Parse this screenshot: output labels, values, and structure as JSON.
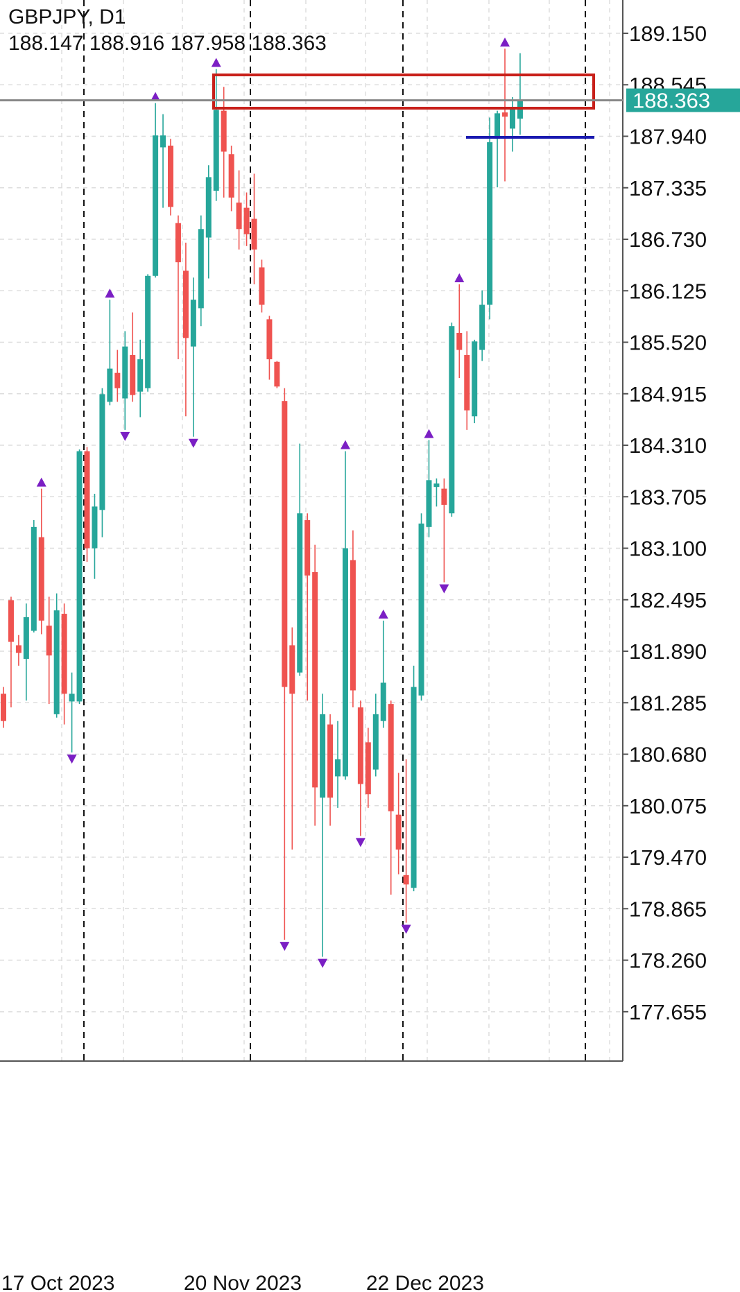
{
  "chart_data": {
    "type": "candlestick",
    "title": "GBPJPY, D1",
    "categories": [
      "17 Oct 2023",
      null,
      null,
      null,
      null,
      null,
      null,
      null,
      null,
      null,
      null,
      null,
      null,
      null,
      null,
      null,
      null,
      null,
      null,
      null,
      null,
      null,
      null,
      null,
      "20 Nov 2023",
      null,
      null,
      null,
      null,
      null,
      null,
      null,
      null,
      null,
      null,
      null,
      null,
      null,
      null,
      null,
      null,
      null,
      null,
      null,
      null,
      null,
      null,
      null,
      "22 Dec 2023",
      null,
      null,
      null,
      null,
      null,
      null,
      null,
      null,
      null,
      null,
      null,
      null,
      null,
      null,
      null,
      null,
      null,
      null,
      null,
      null
    ],
    "open": [
      181.39,
      182.49,
      181.96,
      181.8,
      182.13,
      183.23,
      182.19,
      181.15,
      182.33,
      181.3,
      181.3,
      184.24,
      183.1,
      183.55,
      184.82,
      185.16,
      184.86,
      185.37,
      184.94,
      184.98,
      186.3,
      187.81,
      187.83,
      186.92,
      186.36,
      185.47,
      185.92,
      186.75,
      187.3,
      188.24,
      187.73,
      187.16,
      187.1,
      186.97,
      186.4,
      185.79,
      185.29,
      184.83,
      181.96,
      181.64,
      183.43,
      182.82,
      180.17,
      181.03,
      180.42,
      180.42,
      182.96,
      181.23,
      180.82,
      180.5,
      181.07,
      181.27,
      179.97,
      179.26,
      179.11,
      181.37,
      183.35,
      183.82,
      183.8,
      183.51,
      185.63,
      185.37,
      184.65,
      185.43,
      185.96,
      187.91,
      188.22,
      188.03,
      188.147
    ],
    "high": [
      181.47,
      182.53,
      182.08,
      182.45,
      183.43,
      183.8,
      182.53,
      182.57,
      182.45,
      181.64,
      184.26,
      184.29,
      183.74,
      184.98,
      186.02,
      185.43,
      185.65,
      185.87,
      185.55,
      186.32,
      188.33,
      188.2,
      187.91,
      187.01,
      186.69,
      186.28,
      187.01,
      187.6,
      188.73,
      188.52,
      187.83,
      187.54,
      187.28,
      187.5,
      186.49,
      185.83,
      185.3,
      184.98,
      182.17,
      184.33,
      183.51,
      183.14,
      181.39,
      181.15,
      181.07,
      184.24,
      183.31,
      181.31,
      180.99,
      181.39,
      182.25,
      181.31,
      180.46,
      180.62,
      181.72,
      183.51,
      184.37,
      183.92,
      183.92,
      185.75,
      186.2,
      185.65,
      185.55,
      186.13,
      188.16,
      188.24,
      188.97,
      188.4,
      188.916
    ],
    "low": [
      180.99,
      181.23,
      181.72,
      181.31,
      182.11,
      182.09,
      181.27,
      181.11,
      181.03,
      180.7,
      181.27,
      182.94,
      182.74,
      183.23,
      184.78,
      184.82,
      184.49,
      184.82,
      184.64,
      184.94,
      186.28,
      187.1,
      187.01,
      185.32,
      184.65,
      184.41,
      185.71,
      186.27,
      187.18,
      187.22,
      187.06,
      186.61,
      186.65,
      186.2,
      185.87,
      185.08,
      184.98,
      178.5,
      179.56,
      181.6,
      181.31,
      179.84,
      178.3,
      179.84,
      180.05,
      180.38,
      181.23,
      179.72,
      180.05,
      180.42,
      180.99,
      179.03,
      179.27,
      178.7,
      179.07,
      181.31,
      183.23,
      183.59,
      182.7,
      183.47,
      185.1,
      184.49,
      184.57,
      185.3,
      185.79,
      187.34,
      187.41,
      187.76,
      187.958
    ],
    "close": [
      181.07,
      182.0,
      181.87,
      182.29,
      183.35,
      182.25,
      181.84,
      182.37,
      181.39,
      181.39,
      184.24,
      183.1,
      183.59,
      184.91,
      185.21,
      184.98,
      185.47,
      184.9,
      185.32,
      186.3,
      187.95,
      187.95,
      187.11,
      186.46,
      185.57,
      186.02,
      186.85,
      187.46,
      188.25,
      187.76,
      187.22,
      186.85,
      186.79,
      186.61,
      185.96,
      185.32,
      185.0,
      181.47,
      181.39,
      183.51,
      182.78,
      180.29,
      181.15,
      180.17,
      180.62,
      183.1,
      181.43,
      180.33,
      180.21,
      181.15,
      181.52,
      180.01,
      179.56,
      179.15,
      181.47,
      183.39,
      183.9,
      183.86,
      183.61,
      185.71,
      185.43,
      184.72,
      185.53,
      185.96,
      187.87,
      188.21,
      188.17,
      188.28,
      188.363
    ],
    "up_color": "#26a69a",
    "down_color": "#ef5350",
    "fractal_color": "#7b1fc4",
    "price_line_color": "#888888",
    "ylim": [
      177.075,
      189.541
    ],
    "yticks": [
      {
        "value": 189.15,
        "label": "189.150"
      },
      188.545,
      {
        "value": 187.94,
        "label": "187.940"
      },
      187.335,
      {
        "value": 186.73,
        "label": "186.730"
      },
      186.125,
      {
        "value": 185.52,
        "label": "185.520"
      },
      184.915,
      {
        "value": 184.31,
        "label": "184.310"
      },
      183.705,
      {
        "value": 183.1,
        "label": "183.100"
      },
      182.495,
      {
        "value": 181.89,
        "label": "181.890"
      },
      181.285,
      {
        "value": 180.68,
        "label": "180.680"
      },
      180.075,
      {
        "value": 179.47,
        "label": "179.470"
      },
      178.865,
      {
        "value": 178.26,
        "label": "178.260"
      },
      177.655
    ],
    "grid": true
  }
}
